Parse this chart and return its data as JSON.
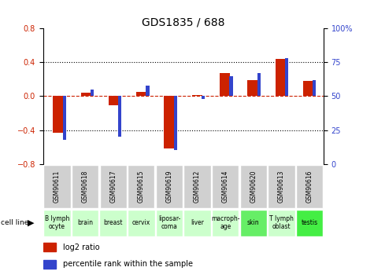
{
  "title": "GDS1835 / 688",
  "samples": [
    "GSM90611",
    "GSM90618",
    "GSM90617",
    "GSM90615",
    "GSM90619",
    "GSM90612",
    "GSM90614",
    "GSM90620",
    "GSM90613",
    "GSM90616"
  ],
  "cell_lines": [
    "B lymph\nocyte",
    "brain",
    "breast",
    "cervix",
    "liposar-\ncoma",
    "liver",
    "macroph-\nage",
    "skin",
    "T lymph\noblast",
    "testis"
  ],
  "cell_line_colors": [
    "#ccffcc",
    "#ccffcc",
    "#ccffcc",
    "#ccffcc",
    "#ccffcc",
    "#ccffcc",
    "#ccffcc",
    "#66ee66",
    "#ccffcc",
    "#44ee44"
  ],
  "log2_ratio": [
    -0.43,
    0.04,
    -0.11,
    0.05,
    -0.62,
    0.01,
    0.27,
    0.19,
    0.44,
    0.18
  ],
  "percentile_rank": [
    18,
    55,
    20,
    58,
    10,
    48,
    65,
    67,
    78,
    62
  ],
  "ylim_left": [
    -0.8,
    0.8
  ],
  "ylim_right": [
    0,
    100
  ],
  "yticks_left": [
    -0.8,
    -0.4,
    0.0,
    0.4,
    0.8
  ],
  "yticks_right": [
    0,
    25,
    50,
    75,
    100
  ],
  "ytick_labels_right": [
    "0",
    "25",
    "50",
    "75",
    "100%"
  ],
  "red_color": "#cc2200",
  "blue_color": "#3344cc",
  "title_fontsize": 10,
  "tick_fontsize": 7,
  "gsm_fontsize": 5.5,
  "cell_fontsize": 5.5,
  "legend_fontsize": 7
}
